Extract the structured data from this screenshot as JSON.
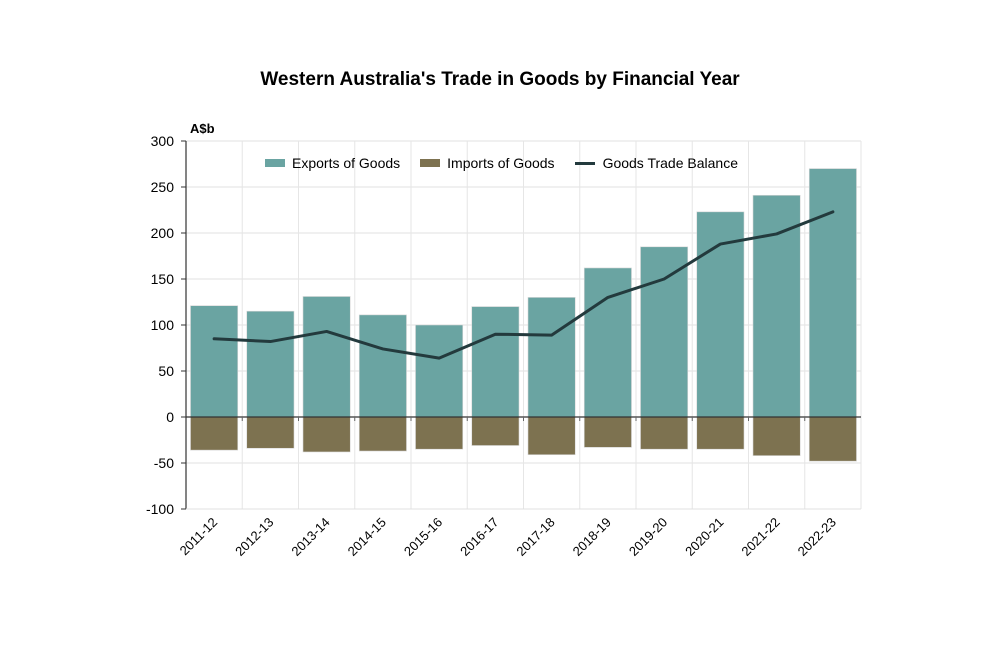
{
  "chart_data": {
    "type": "bar+line",
    "title": "Western Australia's Trade in Goods by Financial Year",
    "ylabel": "A$b",
    "xlabel": "",
    "ylim": [
      -100,
      300
    ],
    "yticks": [
      300,
      250,
      200,
      150,
      100,
      50,
      0,
      -50,
      -100
    ],
    "grid": true,
    "legend_position": "top-inside",
    "categories": [
      "2011-12",
      "2012-13",
      "2013-14",
      "2014-15",
      "2015-16",
      "2016-17",
      "2017-18",
      "2018-19",
      "2019-20",
      "2020-21",
      "2021-22",
      "2022-23"
    ],
    "series": [
      {
        "name": "Exports of Goods",
        "type": "bar",
        "color": "#6aa4a2",
        "values": [
          121,
          115,
          131,
          111,
          100,
          120,
          130,
          162,
          185,
          223,
          241,
          270
        ]
      },
      {
        "name": "Imports of Goods",
        "type": "bar",
        "color": "#7d7250",
        "values": [
          -36,
          -34,
          -38,
          -37,
          -35,
          -31,
          -41,
          -33,
          -35,
          -35,
          -42,
          -48
        ]
      },
      {
        "name": "Goods Trade Balance",
        "type": "line",
        "color": "#233a3d",
        "values": [
          85,
          82,
          93,
          74,
          64,
          90,
          89,
          130,
          150,
          188,
          199,
          223
        ]
      }
    ]
  },
  "legend": {
    "items": [
      {
        "label": "Exports of Goods",
        "kind": "swatch",
        "color": "#6aa4a2"
      },
      {
        "label": "Imports of Goods",
        "kind": "swatch",
        "color": "#7d7250"
      },
      {
        "label": "Goods Trade Balance",
        "kind": "line",
        "color": "#233a3d"
      }
    ]
  }
}
